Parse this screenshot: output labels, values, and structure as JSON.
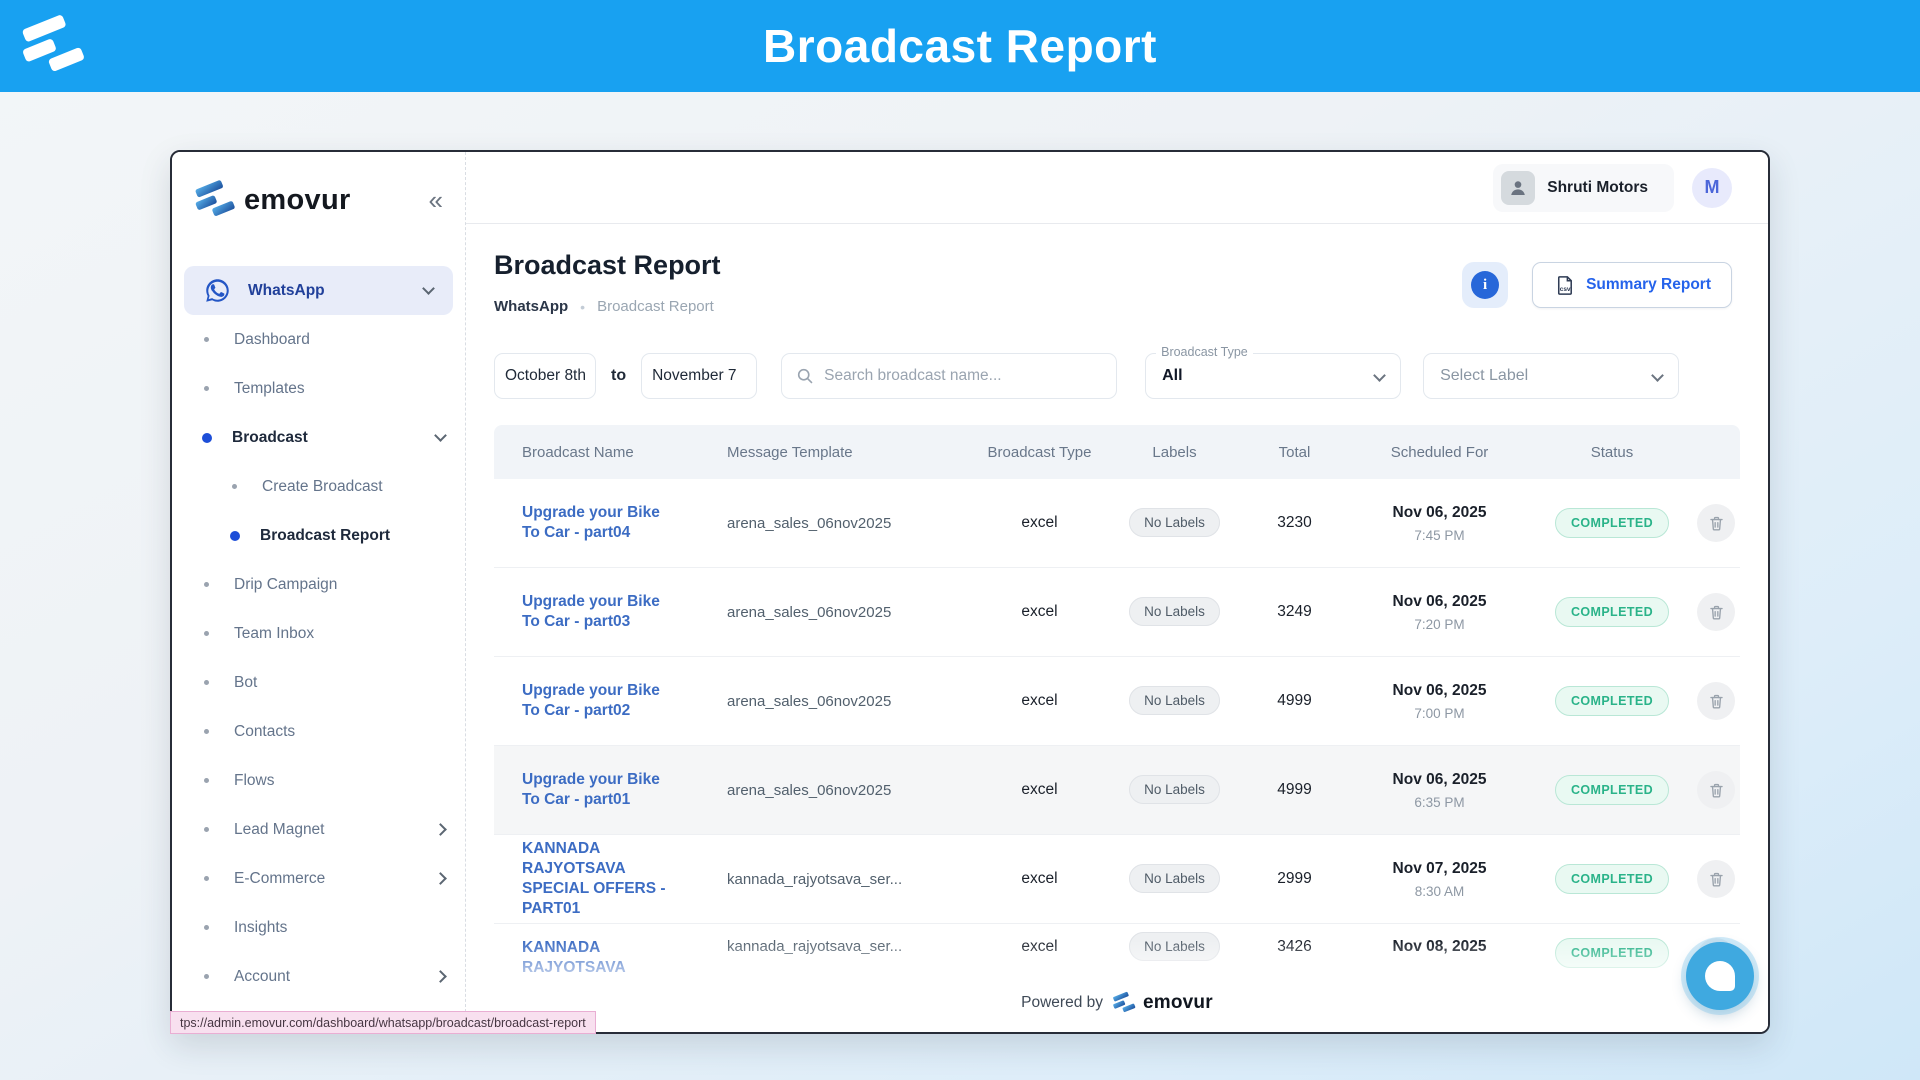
{
  "banner": {
    "title": "Broadcast Report"
  },
  "sidebar": {
    "brand": "emovur",
    "collapse_icon": "«",
    "items": [
      {
        "label": "WhatsApp",
        "icon": "whatsapp",
        "active": true,
        "chevron": "down"
      },
      {
        "label": "Dashboard"
      },
      {
        "label": "Templates"
      },
      {
        "label": "Broadcast",
        "dot": "blue",
        "bold": true,
        "chevron": "down"
      },
      {
        "label": "Create Broadcast",
        "indent": true
      },
      {
        "label": "Broadcast Report",
        "dot": "blue",
        "bold": true,
        "indent": true
      },
      {
        "label": "Drip Campaign"
      },
      {
        "label": "Team Inbox"
      },
      {
        "label": "Bot"
      },
      {
        "label": "Contacts"
      },
      {
        "label": "Flows"
      },
      {
        "label": "Lead Magnet",
        "chevron": "right"
      },
      {
        "label": "E-Commerce",
        "chevron": "right"
      },
      {
        "label": "Insights"
      },
      {
        "label": "Account",
        "chevron": "right"
      }
    ]
  },
  "topbar": {
    "account_name": "Shruti Motors",
    "avatar_initial": "M"
  },
  "page": {
    "title": "Broadcast Report",
    "breadcrumb": {
      "root": "WhatsApp",
      "separator": "•",
      "current": "Broadcast Report"
    },
    "summary_button": "Summary Report",
    "csv_icon_label": "csv",
    "info_icon_label": "i"
  },
  "filters": {
    "date_from": "October 8th",
    "to_label": "to",
    "date_to": "November 7",
    "search_placeholder": "Search broadcast name...",
    "broadcast_type_label": "Broadcast Type",
    "broadcast_type_value": "All",
    "label_select_placeholder": "Select Label"
  },
  "table": {
    "headers": [
      "Broadcast Name",
      "Message Template",
      "Broadcast Type",
      "Labels",
      "Total",
      "Scheduled For",
      "Status"
    ],
    "rows": [
      {
        "name": "Upgrade your Bike To Car - part04",
        "template": "arena_sales_06nov2025",
        "type": "excel",
        "labels": "No Labels",
        "total": "3230",
        "date": "Nov 06, 2025",
        "time": "7:45 PM",
        "status": "COMPLETED"
      },
      {
        "name": "Upgrade your Bike To Car - part03",
        "template": "arena_sales_06nov2025",
        "type": "excel",
        "labels": "No Labels",
        "total": "3249",
        "date": "Nov 06, 2025",
        "time": "7:20 PM",
        "status": "COMPLETED"
      },
      {
        "name": "Upgrade your Bike To Car - part02",
        "template": "arena_sales_06nov2025",
        "type": "excel",
        "labels": "No Labels",
        "total": "4999",
        "date": "Nov 06, 2025",
        "time": "7:00 PM",
        "status": "COMPLETED"
      },
      {
        "name": "Upgrade your Bike To Car - part01",
        "template": "arena_sales_06nov2025",
        "type": "excel",
        "labels": "No Labels",
        "total": "4999",
        "date": "Nov 06, 2025",
        "time": "6:35 PM",
        "status": "COMPLETED",
        "highlight": true
      },
      {
        "name": "KANNADA RAJYOTSAVA SPECIAL OFFERS - PART01",
        "template": "kannada_rajyotsava_ser...",
        "type": "excel",
        "labels": "No Labels",
        "total": "2999",
        "date": "Nov 07, 2025",
        "time": "8:30 AM",
        "status": "COMPLETED"
      },
      {
        "name": "KANNADA RAJYOTSAVA",
        "template": "kannada_rajyotsava_ser...",
        "type": "excel",
        "labels": "No Labels",
        "total": "3426",
        "date": "Nov 08, 2025",
        "time": "",
        "status": "COMPLETED",
        "faded": true
      }
    ]
  },
  "footer": {
    "powered_by": "Powered by",
    "brand": "emovur"
  },
  "status_bar": {
    "url": "tps://admin.emovur.com/dashboard/whatsapp/broadcast/broadcast-report"
  },
  "colors": {
    "banner": "#18a1f1",
    "accent_blue": "#2563eb",
    "link_blue": "#3c6cc3",
    "success_green": "#2ab389",
    "chat_bubble": "#3fa9e0"
  }
}
